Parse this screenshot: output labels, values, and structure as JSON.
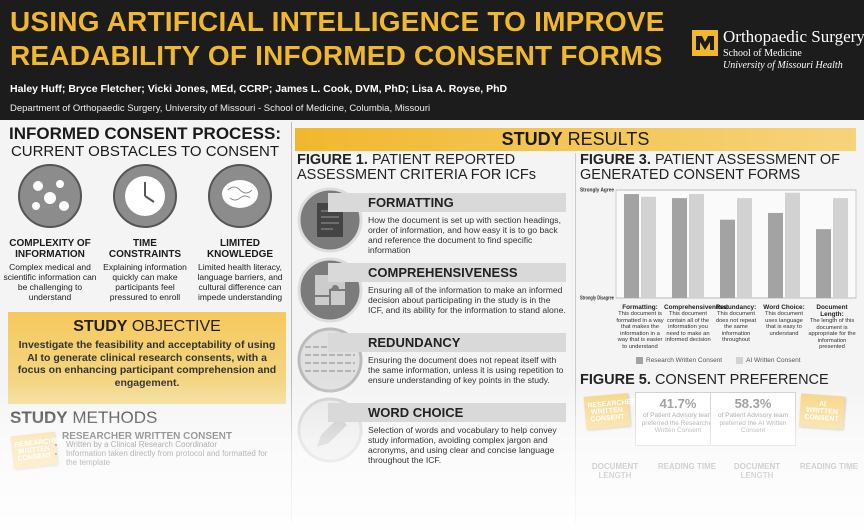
{
  "header": {
    "title_line1": "USING ARTIFICIAL INTELLIGENCE TO IMPROVE",
    "title_line2": "READABILITY OF INFORMED CONSENT FORMS",
    "authors": "Haley Huff; Bryce Fletcher; Vicki Jones, MEd, CCRP; James L. Cook, DVM, PhD; Lisa A. Royse, PhD",
    "department": "Department of Orthopaedic Surgery, University of Missouri - School of Medicine, Columbia, Missouri",
    "logo": {
      "org": "Orthopaedic Surgery",
      "school": "School of Medicine",
      "university": "University of Missouri Health"
    }
  },
  "consent_process": {
    "title": "INFORMED CONSENT PROCESS:",
    "subtitle": "CURRENT OBSTACLES TO CONSENT",
    "obstacles": [
      {
        "heading": "COMPLEXITY OF INFORMATION",
        "text": "Complex medical and scientific information can be challenging to understand"
      },
      {
        "heading": "TIME CONSTRAINTS",
        "text": "Explaining information quickly can make participants feel pressured to enroll"
      },
      {
        "heading": "LIMITED KNOWLEDGE",
        "text": "Limited health literacy, language barriers, and cultural difference can impede understanding"
      }
    ]
  },
  "objective": {
    "title_bold": "STUDY",
    "title_light": "OBJECTIVE",
    "text": "Investigate the feasibility and acceptability of using AI to generate clinical research consents, with a focus on enhancing participant comprehension and engagement."
  },
  "methods": {
    "title_bold": "STUDY",
    "title_light": "METHODS",
    "badge": "RESEARCHER WRITTEN CONSENT",
    "heading": "RESEARCHER WRITTEN CONSENT",
    "bullets": [
      "Written by a Clinical Research Coordinator",
      "Information taken directly from protocol and formatted for the template"
    ]
  },
  "results": {
    "title_bold": "STUDY",
    "title_light": "RESULTS"
  },
  "figure1": {
    "label": "FIGURE 1.",
    "title": "PATIENT REPORTED ASSESSMENT CRITERIA FOR ICFs",
    "criteria": [
      {
        "heading": "FORMATTING",
        "text": "How the document is set up with section headings, order of information, and how easy it is to go back and reference the document to find specific information"
      },
      {
        "heading": "COMPREHENSIVENESS",
        "text": "Ensuring all of the information to make an informed decision about participating in the study is in the ICF, and its ability for the information to stand alone."
      },
      {
        "heading": "REDUNDANCY",
        "text": "Ensuring the document does not repeat itself with the same information, unless it is using repetition to ensure understanding of key points in the study."
      },
      {
        "heading": "WORD CHOICE",
        "text": "Selection of words and vocabulary to help convey study information, avoiding complex jargon and acronyms, and using clear and concise language throughout the ICF."
      }
    ]
  },
  "chart_data": {
    "type": "bar",
    "label": "FIGURE 3.",
    "title": "PATIENT ASSESSMENT OF GENERATED CONSENT FORMS",
    "categories": [
      "Formatting:",
      "Comprehensiveness:",
      "Redundancy:",
      "Word Choice:",
      "Document Length:"
    ],
    "category_descriptions": [
      "This document is formatted in a way that makes the information in a way that is easier to understand",
      "This document contain all of the information you need to make an informed decision",
      "This document does not repeat the same information throughout",
      "This document uses language that is easy to understand",
      "The length of this document is appropriate for the information presented"
    ],
    "series": [
      {
        "name": "Research Written Consent",
        "color": "#a3a3a3",
        "values": [
          4.85,
          4.7,
          3.9,
          4.15,
          3.55
        ]
      },
      {
        "name": "AI Written Consent",
        "color": "#d2d2d2",
        "values": [
          4.75,
          4.85,
          4.7,
          4.9,
          4.7
        ]
      }
    ],
    "ylim": [
      1,
      5
    ],
    "yticks": [
      {
        "value": 1,
        "label": "Strongly Disagree"
      },
      {
        "value": 5,
        "label": "Strongly Agree"
      }
    ],
    "grid": true
  },
  "figure5": {
    "label": "FIGURE 5.",
    "title": "CONSENT PREFERENCE",
    "options": [
      {
        "note": "RESEARCHER WRITTEN CONSENT",
        "percent": "41.7%",
        "text": "of Patient Advisory team preferred the Researcher Written Consent",
        "factors": [
          "DOCUMENT LENGTH",
          "READING TIME"
        ]
      },
      {
        "note": "AI WRITTEN CONSENT",
        "percent": "58.3%",
        "text": "of Patient Advisory team preferred the AI Written Consent",
        "factors": [
          "DOCUMENT LENGTH",
          "READING TIME"
        ]
      }
    ]
  }
}
